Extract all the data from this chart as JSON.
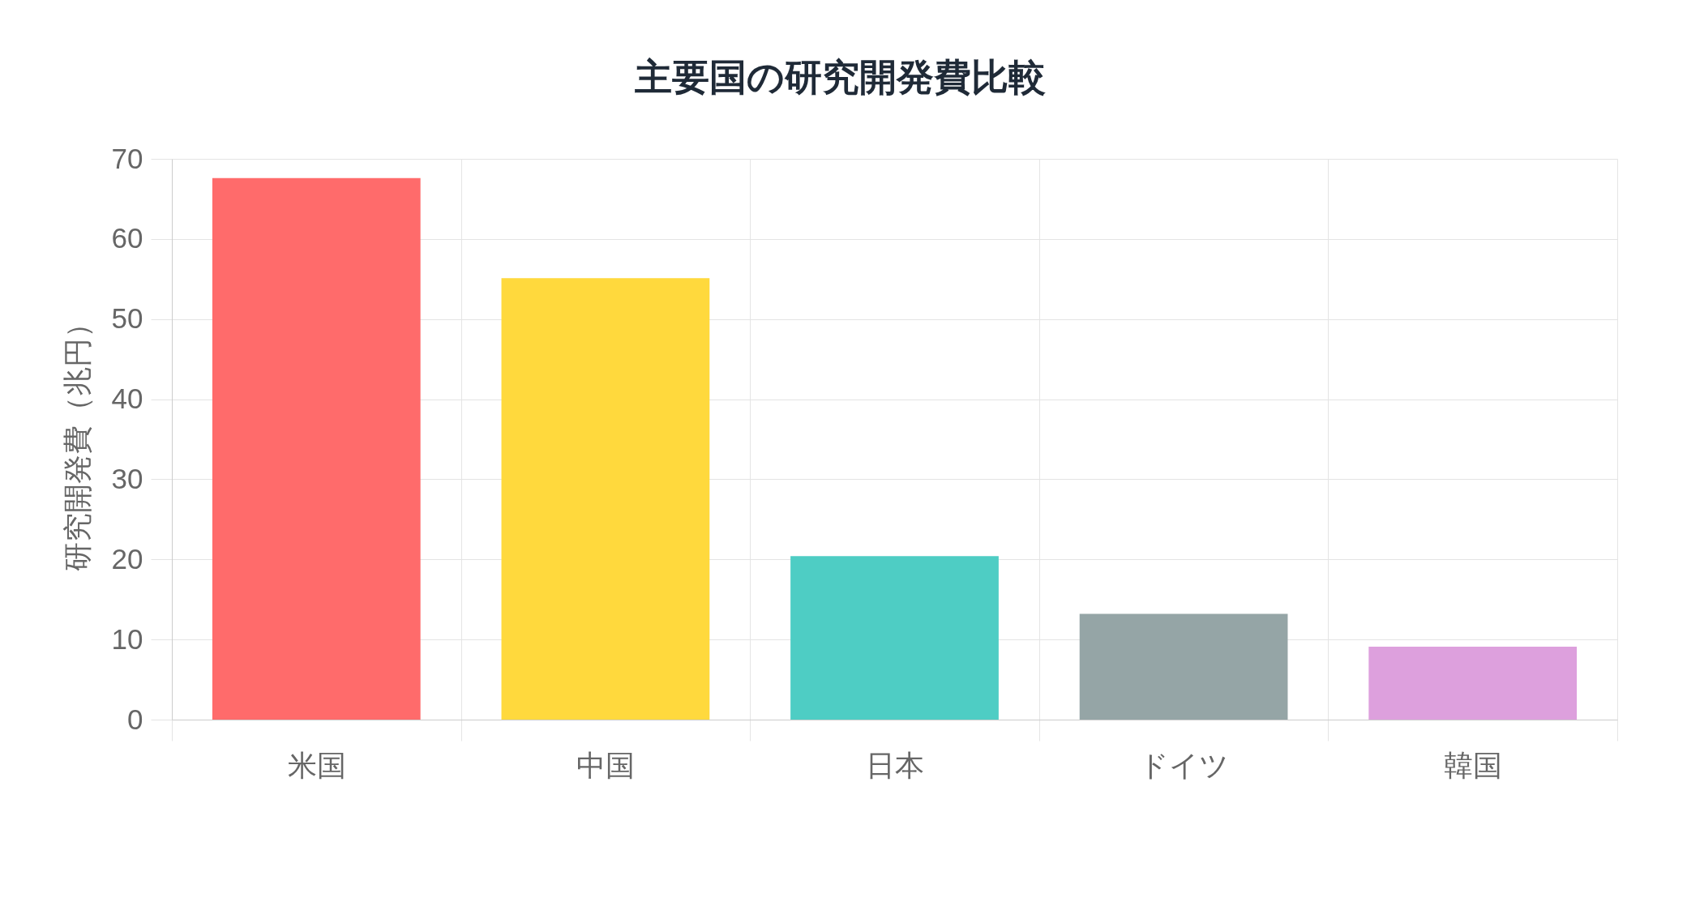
{
  "chart_data": {
    "type": "bar",
    "title": "主要国の研究開発費比較",
    "ylabel": "研究開発費（兆円）",
    "categories": [
      "米国",
      "中国",
      "日本",
      "ドイツ",
      "韓国"
    ],
    "values": [
      67.6,
      55.1,
      20.4,
      13.2,
      9.1
    ],
    "colors": [
      "#ff6b6b",
      "#ffd93d",
      "#4ecdc4",
      "#95a5a6",
      "#dda0dd"
    ],
    "ylim": [
      0,
      70
    ],
    "yticks": [
      0,
      10,
      20,
      30,
      40,
      50,
      60,
      70
    ],
    "grid": true
  }
}
